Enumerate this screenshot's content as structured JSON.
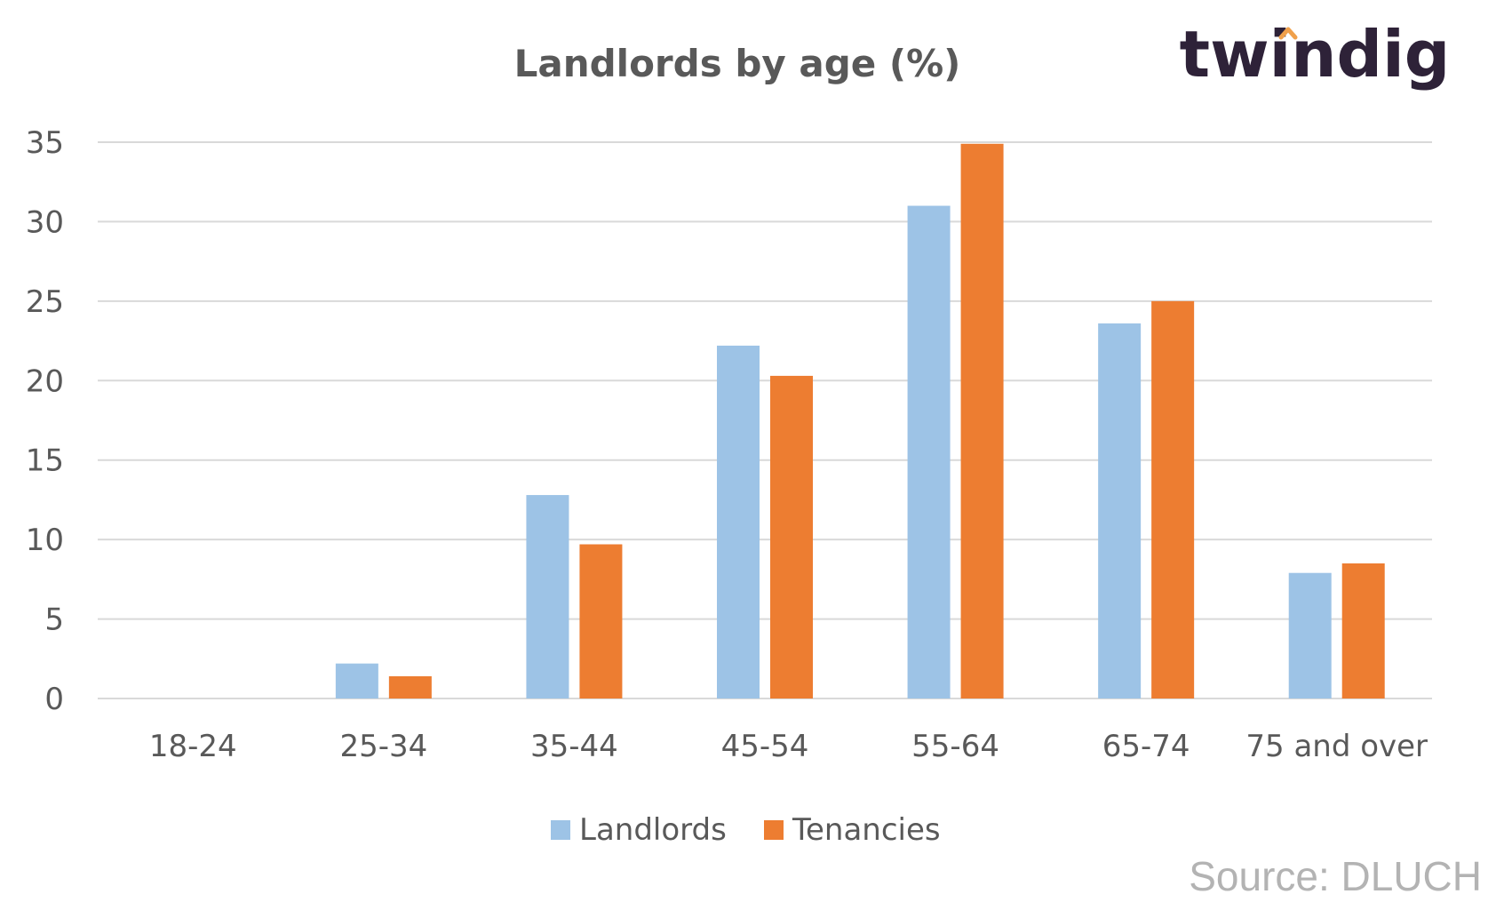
{
  "logo": {
    "text": "twindig",
    "accent_color": "#f0a04b",
    "text_color": "#2e2238"
  },
  "source": "Source: DLUCH",
  "chart_data": {
    "type": "bar",
    "title": "Landlords by age (%)",
    "xlabel": "",
    "ylabel": "",
    "categories": [
      "18-24",
      "25-34",
      "35-44",
      "45-54",
      "55-64",
      "65-74",
      "75 and over"
    ],
    "series": [
      {
        "name": "Landlords",
        "color": "#9dc3e6",
        "values": [
          0,
          2.2,
          12.8,
          22.2,
          31.0,
          23.6,
          7.9
        ]
      },
      {
        "name": "Tenancies",
        "color": "#ed7d31",
        "values": [
          0,
          1.4,
          9.7,
          20.3,
          34.9,
          25.0,
          8.5
        ]
      }
    ],
    "ylim": [
      0,
      35
    ],
    "yticks": [
      0,
      5,
      10,
      15,
      20,
      25,
      30,
      35
    ],
    "grid": true,
    "legend_position": "bottom"
  }
}
